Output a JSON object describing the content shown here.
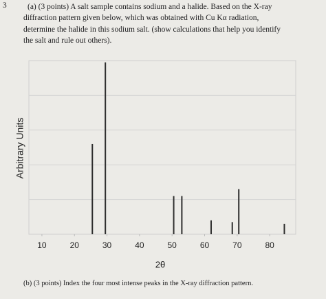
{
  "question": {
    "number": "3",
    "part_a": [
      "(a) (3 points) A salt sample contains sodium and a halide. Based on the X-ray",
      "diffraction pattern given below, which was obtained with Cu Kα radiation,",
      "determine the halide in this sodium salt. (show calculations that help you identify",
      "the salt and rule out others)."
    ],
    "part_b": "(b) (3 points) Index the four most intense peaks in the X-ray diffraction pattern."
  },
  "chart_data": {
    "type": "bar",
    "x_label": "2θ",
    "y_label": "Arbitrary Units",
    "x": [
      25.5,
      29.5,
      50.5,
      53,
      62,
      68.5,
      70.5,
      84.5
    ],
    "values": [
      2.6,
      4.95,
      1.1,
      1.1,
      0.4,
      0.35,
      1.3,
      0.3
    ],
    "color": "#2e2e2e",
    "xlim": [
      6,
      88
    ],
    "xticks": [
      10,
      20,
      30,
      40,
      50,
      60,
      70,
      80
    ],
    "ylim": [
      0,
      5
    ]
  }
}
